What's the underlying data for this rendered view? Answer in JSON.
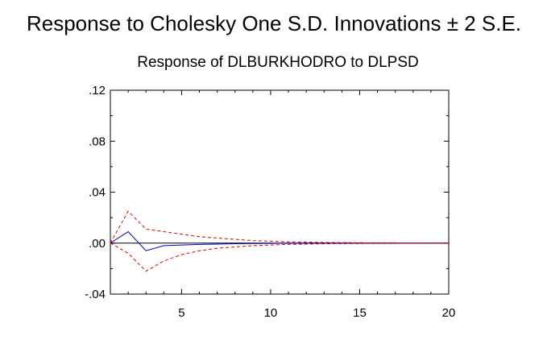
{
  "title": "Response to Cholesky One S.D. Innovations ± 2 S.E.",
  "chart_data": {
    "type": "line",
    "title": "Response of DLBURKHODRO to DLPSD",
    "xlabel": "",
    "ylabel": "",
    "xlim": [
      1,
      20
    ],
    "ylim": [
      -0.04,
      0.12
    ],
    "x_ticks": [
      {
        "value": 5,
        "label": "5"
      },
      {
        "value": 10,
        "label": "10"
      },
      {
        "value": 15,
        "label": "15"
      },
      {
        "value": 20,
        "label": "20"
      }
    ],
    "y_ticks": [
      {
        "value": 0.12,
        "label": ".12"
      },
      {
        "value": 0.08,
        "label": ".08"
      },
      {
        "value": 0.04,
        "label": ".04"
      },
      {
        "value": 0.0,
        "label": ".00"
      },
      {
        "value": -0.04,
        "label": "-.04"
      }
    ],
    "x": [
      1,
      2,
      3,
      4,
      5,
      6,
      7,
      8,
      9,
      10,
      11,
      12,
      13,
      14,
      15,
      16,
      17,
      18,
      19,
      20
    ],
    "series": [
      {
        "style": "solid",
        "color": "#0000cc",
        "values": [
          0.0,
          0.009,
          -0.006,
          -0.002,
          -0.0015,
          -0.001,
          -0.0008,
          -0.0005,
          -0.0003,
          -0.0002,
          -0.0001,
          -0.0001,
          0.0,
          0.0,
          0.0,
          0.0,
          0.0,
          0.0,
          0.0,
          0.0
        ]
      },
      {
        "style": "dashed",
        "color": "#dd0000",
        "values": [
          0.0,
          0.025,
          0.011,
          0.009,
          0.007,
          0.005,
          0.004,
          0.003,
          0.002,
          0.0015,
          0.001,
          0.0008,
          0.0005,
          0.0004,
          0.0003,
          0.0002,
          0.0002,
          0.0001,
          0.0001,
          0.0001
        ]
      },
      {
        "style": "dashed",
        "color": "#dd0000",
        "values": [
          0.0,
          -0.008,
          -0.022,
          -0.014,
          -0.009,
          -0.006,
          -0.004,
          -0.003,
          -0.002,
          -0.0015,
          -0.001,
          -0.0008,
          -0.0005,
          -0.0004,
          -0.0003,
          -0.0002,
          -0.0002,
          -0.0001,
          -0.0001,
          -0.0001
        ]
      }
    ],
    "zero_line": true,
    "grid": false
  }
}
